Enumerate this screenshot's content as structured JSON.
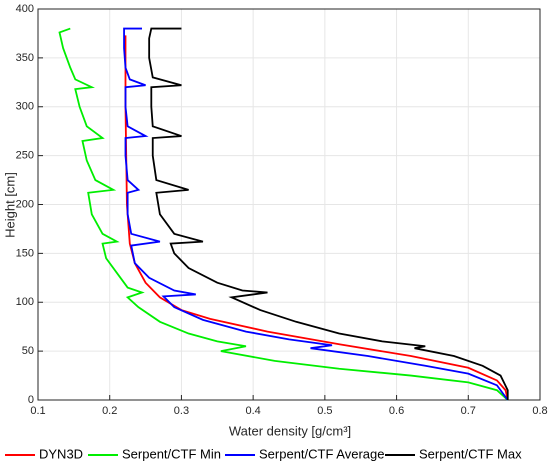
{
  "chart_data": {
    "type": "line",
    "xlabel": "Water density [g/cm³]",
    "ylabel": "Height [cm]",
    "xlim": [
      0.1,
      0.8
    ],
    "xticks": [
      0.1,
      0.2,
      0.3,
      0.4,
      0.5,
      0.6,
      0.7,
      0.8
    ],
    "ylim": [
      0,
      400
    ],
    "yticks": [
      0,
      50,
      100,
      150,
      200,
      250,
      300,
      350,
      400
    ],
    "grid": true,
    "legend": "bottom",
    "series": [
      {
        "name": "DYN3D",
        "color": "#ff0000",
        "x": [
          0.222,
          0.222,
          0.222,
          0.223,
          0.224,
          0.228,
          0.235,
          0.25,
          0.27,
          0.3,
          0.34,
          0.42,
          0.52,
          0.62,
          0.7,
          0.74,
          0.752,
          0.755
        ],
        "y": [
          373,
          340,
          300,
          250,
          200,
          160,
          140,
          120,
          105,
          92,
          83,
          70,
          57,
          45,
          33,
          20,
          10,
          0
        ]
      },
      {
        "name": "Serpent/CTF Min",
        "color": "#00ee00",
        "x": [
          0.145,
          0.13,
          0.135,
          0.145,
          0.152,
          0.175,
          0.152,
          0.158,
          0.168,
          0.19,
          0.162,
          0.168,
          0.18,
          0.205,
          0.17,
          0.175,
          0.19,
          0.21,
          0.19,
          0.195,
          0.21,
          0.225,
          0.245,
          0.225,
          0.24,
          0.27,
          0.31,
          0.35,
          0.39,
          0.355,
          0.43,
          0.52,
          0.62,
          0.7,
          0.74,
          0.755
        ],
        "y": [
          380,
          376,
          360,
          340,
          328,
          320,
          318,
          300,
          280,
          268,
          265,
          245,
          225,
          215,
          212,
          190,
          170,
          162,
          160,
          145,
          130,
          115,
          110,
          105,
          95,
          80,
          68,
          60,
          55,
          50,
          40,
          32,
          25,
          18,
          10,
          0
        ]
      },
      {
        "name": "Serpent/CTF Average",
        "color": "#0000ff",
        "x": [
          0.245,
          0.22,
          0.22,
          0.222,
          0.228,
          0.25,
          0.222,
          0.222,
          0.225,
          0.25,
          0.222,
          0.222,
          0.225,
          0.24,
          0.225,
          0.225,
          0.23,
          0.27,
          0.23,
          0.235,
          0.255,
          0.29,
          0.32,
          0.275,
          0.29,
          0.33,
          0.39,
          0.45,
          0.51,
          0.48,
          0.56,
          0.64,
          0.7,
          0.74,
          0.755
        ],
        "y": [
          380,
          380,
          360,
          340,
          328,
          322,
          320,
          300,
          280,
          270,
          268,
          250,
          225,
          215,
          212,
          190,
          170,
          162,
          158,
          140,
          125,
          112,
          108,
          106,
          95,
          82,
          70,
          62,
          56,
          53,
          45,
          35,
          27,
          15,
          0
        ]
      },
      {
        "name": "Serpent/CTF Max",
        "color": "#000000",
        "x": [
          0.3,
          0.258,
          0.255,
          0.255,
          0.26,
          0.3,
          0.258,
          0.258,
          0.26,
          0.3,
          0.26,
          0.26,
          0.265,
          0.31,
          0.265,
          0.27,
          0.29,
          0.33,
          0.285,
          0.29,
          0.31,
          0.35,
          0.385,
          0.42,
          0.37,
          0.41,
          0.46,
          0.52,
          0.58,
          0.64,
          0.625,
          0.68,
          0.72,
          0.745,
          0.755,
          0.755
        ],
        "y": [
          380,
          380,
          370,
          350,
          330,
          322,
          320,
          300,
          280,
          270,
          268,
          250,
          225,
          215,
          212,
          190,
          170,
          162,
          160,
          150,
          135,
          120,
          112,
          110,
          105,
          92,
          80,
          68,
          60,
          55,
          53,
          45,
          35,
          25,
          10,
          0
        ]
      }
    ]
  }
}
